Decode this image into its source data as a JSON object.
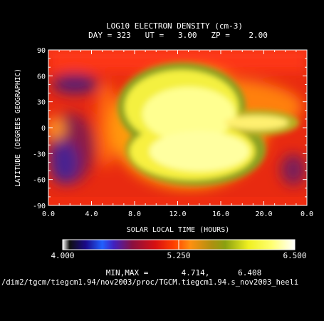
{
  "chart_data": {
    "type": "heatmap",
    "title": "LOG10 ELECTRON DENSITY (cm-3)",
    "subtitle": "DAY = 323   UT =   3.00   ZP =    2.00",
    "xlabel": "SOLAR LOCAL TIME (HOURS)",
    "ylabel": "LATITUDE (DEGREES GEOGRAPHIC)",
    "xlim": [
      0,
      24
    ],
    "ylim": [
      -90,
      90
    ],
    "x_ticks": [
      "0.0",
      "4.0",
      "8.0",
      "12.0",
      "16.0",
      "20.0",
      "0.0"
    ],
    "y_ticks": [
      "90",
      "60",
      "30",
      "0",
      "-30",
      "-60",
      "-90"
    ],
    "colorbar": {
      "min_label": "4.000",
      "mid_label": "5.250",
      "max_label": "6.500",
      "range": [
        4.0,
        6.5
      ]
    },
    "min_max_text": "MIN,MAX =       4.714,      6.408",
    "footer_path": "/dim2/tgcm/tiegcm1.94/nov2003/proc/TGCM.tiegcm1.94.s_nov2003_heeli",
    "minimum": 4.714,
    "maximum": 6.408
  }
}
